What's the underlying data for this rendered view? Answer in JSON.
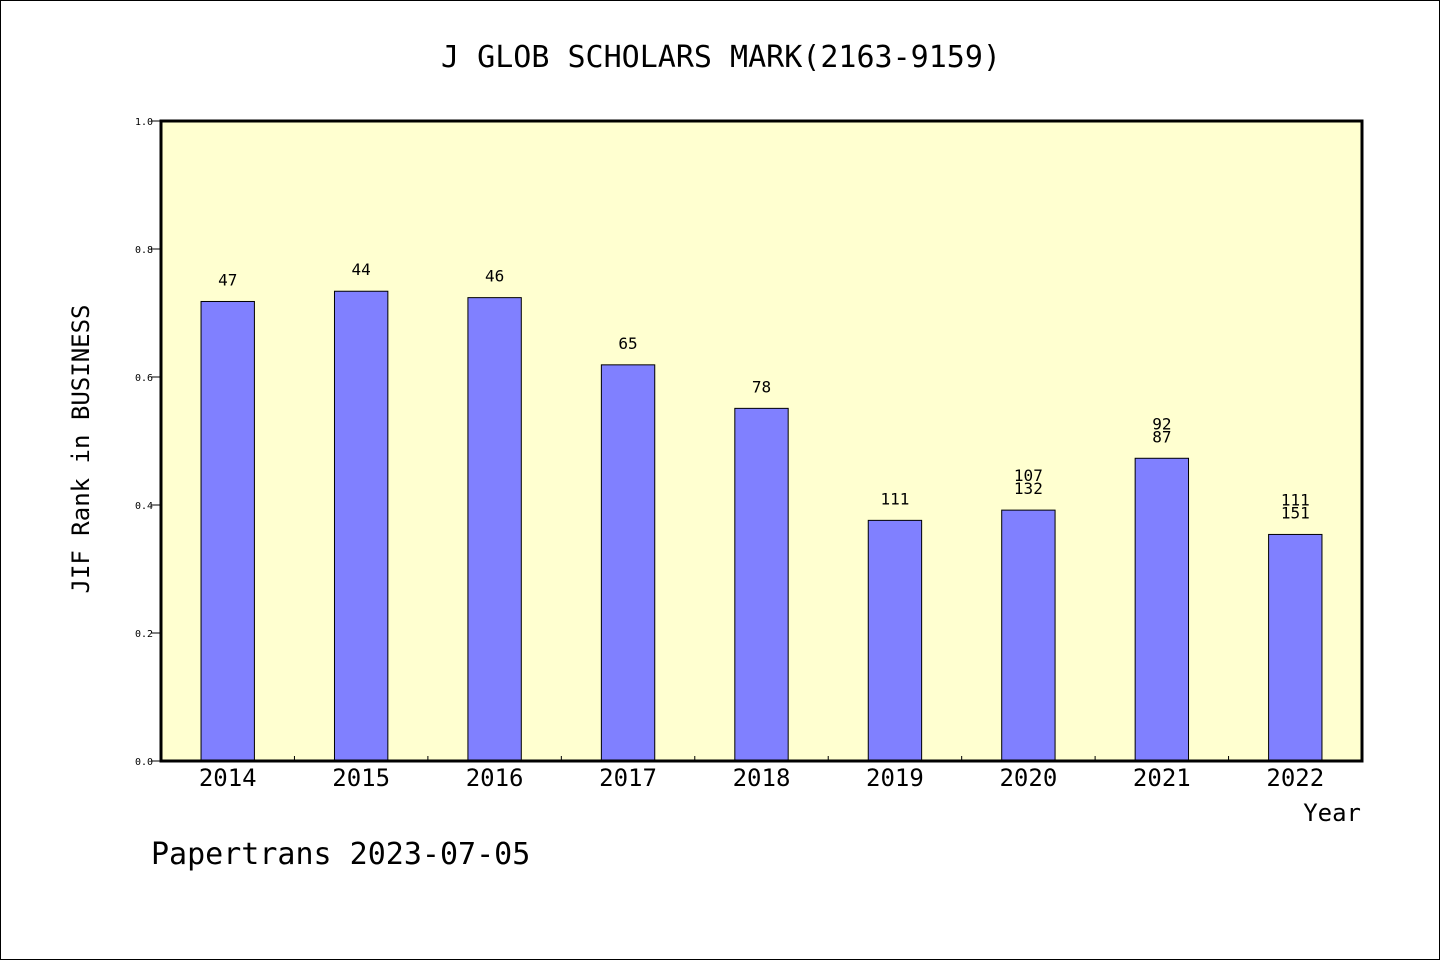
{
  "chart_data": {
    "type": "bar",
    "title": "J GLOB SCHOLARS MARK(2163-9159)",
    "xlabel": "Year",
    "ylabel": "JIF Rank in BUSINESS",
    "ylim": [
      0,
      1.0
    ],
    "yticks": [
      "0.0",
      "0.2",
      "0.4",
      "0.6",
      "0.8",
      "1.0"
    ],
    "categories": [
      "2014",
      "2015",
      "2016",
      "2017",
      "2018",
      "2019",
      "2020",
      "2021",
      "2022"
    ],
    "values": [
      0.718,
      0.734,
      0.724,
      0.619,
      0.551,
      0.376,
      0.392,
      0.473,
      0.354
    ],
    "labels": [
      [
        "47"
      ],
      [
        "44"
      ],
      [
        "46"
      ],
      [
        "65"
      ],
      [
        "78"
      ],
      [
        "111"
      ],
      [
        "107",
        "132"
      ],
      [
        "92",
        "87"
      ],
      [
        "111",
        "151"
      ]
    ],
    "colors": {
      "plot_bg": "#ffffd0",
      "bar": "#8080ff",
      "bar_edge": "#000000"
    },
    "grid": false
  },
  "footer": "Papertrans 2023-07-05"
}
